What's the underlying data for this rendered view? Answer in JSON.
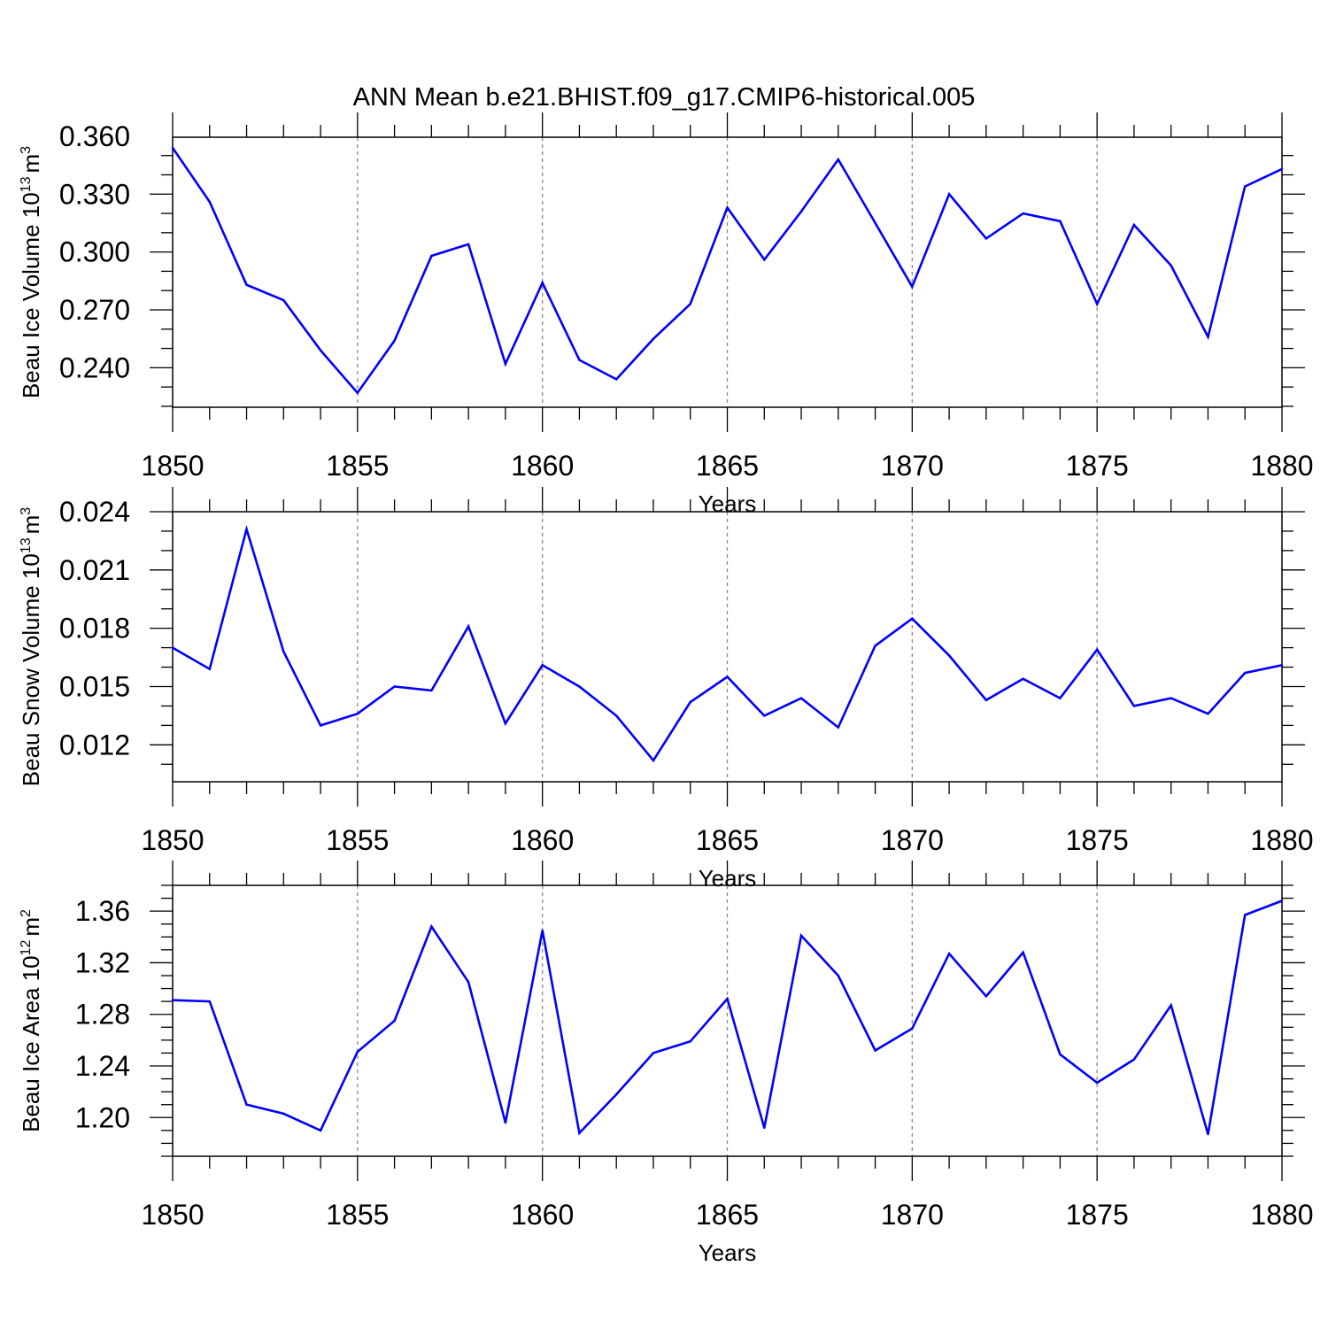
{
  "title": "ANN Mean b.e21.BHIST.f09_g17.CMIP6-historical.005",
  "line_color": "#0000ff",
  "chart_data": [
    {
      "type": "line",
      "title": "ANN Mean b.e21.BHIST.f09_g17.CMIP6-historical.005",
      "xlabel": "Years",
      "ylabel_main": "Beau Ice Volume 10",
      "ylabel_exp": "13",
      "ylabel_unit": "m",
      "ylabel_unit_exp": "3",
      "xlim": [
        1850,
        1880
      ],
      "ylim": [
        0.2195,
        0.3595
      ],
      "xticks": [
        1850,
        1855,
        1860,
        1865,
        1870,
        1875,
        1880
      ],
      "xtick_labels": [
        "1850",
        "1855",
        "1860",
        "1865",
        "1870",
        "1875",
        "1880"
      ],
      "yticks": [
        0.24,
        0.27,
        0.3,
        0.33,
        0.36
      ],
      "ytick_labels": [
        "0.240",
        "0.270",
        "0.300",
        "0.330",
        "0.360"
      ],
      "y_minor_step": 0.01,
      "x": [
        1850,
        1851,
        1852,
        1853,
        1854,
        1855,
        1856,
        1857,
        1858,
        1859,
        1860,
        1861,
        1862,
        1863,
        1864,
        1865,
        1866,
        1867,
        1868,
        1869,
        1870,
        1871,
        1872,
        1873,
        1874,
        1875,
        1876,
        1877,
        1878,
        1879,
        1880
      ],
      "values": [
        0.354,
        0.326,
        0.283,
        0.275,
        0.249,
        0.227,
        0.254,
        0.298,
        0.304,
        0.242,
        0.284,
        0.244,
        0.234,
        0.255,
        0.273,
        0.323,
        0.296,
        0.321,
        0.348,
        0.315,
        0.282,
        0.33,
        0.307,
        0.32,
        0.316,
        0.273,
        0.314,
        0.293,
        0.256,
        0.334,
        0.343
      ]
    },
    {
      "type": "line",
      "xlabel": "Years",
      "ylabel_main": "Beau Snow Volume 10",
      "ylabel_exp": "13",
      "ylabel_unit": "m",
      "ylabel_unit_exp": "3",
      "xlim": [
        1850,
        1880
      ],
      "ylim": [
        0.0101,
        0.024
      ],
      "xticks": [
        1850,
        1855,
        1860,
        1865,
        1870,
        1875,
        1880
      ],
      "xtick_labels": [
        "1850",
        "1855",
        "1860",
        "1865",
        "1870",
        "1875",
        "1880"
      ],
      "yticks": [
        0.012,
        0.015,
        0.018,
        0.021,
        0.024
      ],
      "ytick_labels": [
        "0.012",
        "0.015",
        "0.018",
        "0.021",
        "0.024"
      ],
      "y_minor_step": 0.001,
      "x": [
        1850,
        1851,
        1852,
        1853,
        1854,
        1855,
        1856,
        1857,
        1858,
        1859,
        1860,
        1861,
        1862,
        1863,
        1864,
        1865,
        1866,
        1867,
        1868,
        1869,
        1870,
        1871,
        1872,
        1873,
        1874,
        1875,
        1876,
        1877,
        1878,
        1879,
        1880
      ],
      "values": [
        0.017,
        0.0159,
        0.0231,
        0.0168,
        0.013,
        0.0136,
        0.015,
        0.0148,
        0.0181,
        0.0131,
        0.0161,
        0.015,
        0.0135,
        0.0112,
        0.0142,
        0.0155,
        0.0135,
        0.0144,
        0.0129,
        0.0171,
        0.0185,
        0.0166,
        0.0143,
        0.0154,
        0.0144,
        0.0169,
        0.014,
        0.0144,
        0.0136,
        0.0157,
        0.0161
      ]
    },
    {
      "type": "line",
      "xlabel": "Years",
      "ylabel_main": "Beau Ice Area 10",
      "ylabel_exp": "12",
      "ylabel_unit": "m",
      "ylabel_unit_exp": "2",
      "xlim": [
        1850,
        1880
      ],
      "ylim": [
        1.17,
        1.38
      ],
      "xticks": [
        1850,
        1855,
        1860,
        1865,
        1870,
        1875,
        1880
      ],
      "xtick_labels": [
        "1850",
        "1855",
        "1860",
        "1865",
        "1870",
        "1875",
        "1880"
      ],
      "yticks": [
        1.2,
        1.24,
        1.28,
        1.32,
        1.36
      ],
      "ytick_labels": [
        "1.20",
        "1.24",
        "1.28",
        "1.32",
        "1.36"
      ],
      "y_minor_step": 0.01,
      "x": [
        1850,
        1851,
        1852,
        1853,
        1854,
        1855,
        1856,
        1857,
        1858,
        1859,
        1860,
        1861,
        1862,
        1863,
        1864,
        1865,
        1866,
        1867,
        1868,
        1869,
        1870,
        1871,
        1872,
        1873,
        1874,
        1875,
        1876,
        1877,
        1878,
        1879,
        1880
      ],
      "values": [
        1.291,
        1.29,
        1.21,
        1.203,
        1.19,
        1.251,
        1.275,
        1.348,
        1.305,
        1.196,
        1.345,
        1.188,
        1.218,
        1.25,
        1.259,
        1.292,
        1.192,
        1.341,
        1.31,
        1.252,
        1.269,
        1.327,
        1.294,
        1.328,
        1.249,
        1.227,
        1.245,
        1.287,
        1.187,
        1.357,
        1.368
      ]
    }
  ]
}
